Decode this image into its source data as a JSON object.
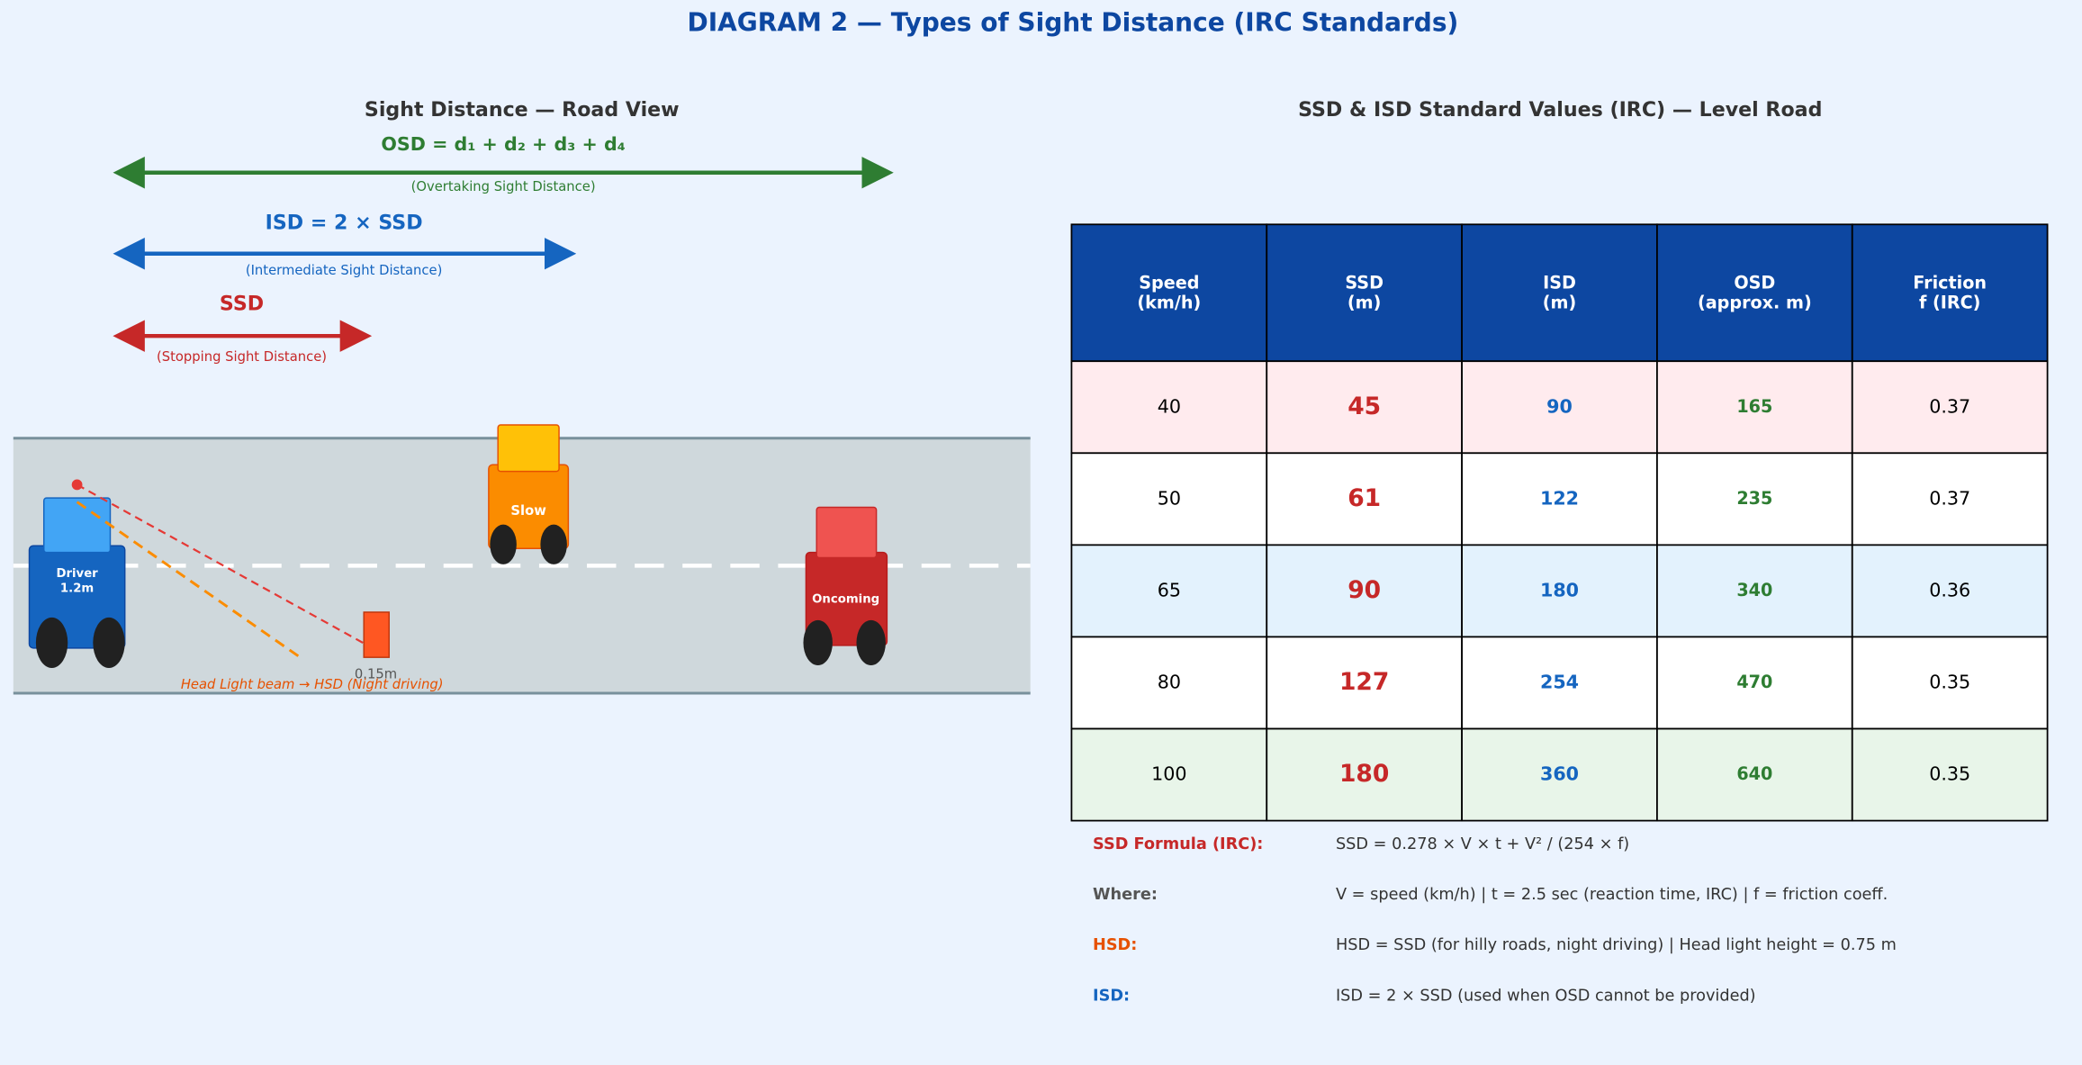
{
  "header": {
    "title": "DIAGRAM 2 — Types of Sight Distance (IRC Standards)"
  },
  "road_view": {
    "title": "Sight Distance — Road View",
    "osd": {
      "formula": "OSD = d₁ + d₂ + d₃ + d₄",
      "caption": "(Overtaking Sight Distance)"
    },
    "isd": {
      "formula": "ISD = 2 × SSD",
      "caption": "(Intermediate Sight Distance)"
    },
    "ssd": {
      "formula": "SSD",
      "caption": "(Stopping Sight Distance)"
    },
    "driver": [
      "Driver",
      "1.2m"
    ],
    "slow": "Slow",
    "oncoming": "Oncoming",
    "obstacle": "0.15m",
    "headlight": "Head Light beam → HSD (Night driving)"
  },
  "table": {
    "title": "SSD & ISD Standard Values (IRC) — Level Road",
    "headers": [
      [
        "Speed",
        "(km/h)"
      ],
      [
        "SSD",
        "(m)"
      ],
      [
        "ISD",
        "(m)"
      ],
      [
        "OSD",
        "(approx. m)"
      ],
      [
        "Friction",
        "f (IRC)"
      ]
    ],
    "rows": [
      [
        "40",
        "45",
        "90",
        "165",
        "0.37"
      ],
      [
        "50",
        "61",
        "122",
        "235",
        "0.37"
      ],
      [
        "65",
        "90",
        "180",
        "340",
        "0.36"
      ],
      [
        "80",
        "127",
        "254",
        "470",
        "0.35"
      ],
      [
        "100",
        "180",
        "360",
        "640",
        "0.35"
      ]
    ]
  },
  "notes": [
    {
      "label": "SSD Formula (IRC):",
      "text": "SSD = 0.278 × V × t  +  V² / (254 × f)"
    },
    {
      "label": "Where:",
      "text": "V = speed (km/h)  |  t = 2.5 sec (reaction time, IRC)  |  f = friction coeff."
    },
    {
      "label": "HSD:",
      "text": "HSD = SSD  (for hilly roads, night driving)  |  Head light height = 0.75 m"
    },
    {
      "label": "ISD:",
      "text": "ISD = 2 × SSD  (used when OSD cannot be provided)"
    }
  ]
}
